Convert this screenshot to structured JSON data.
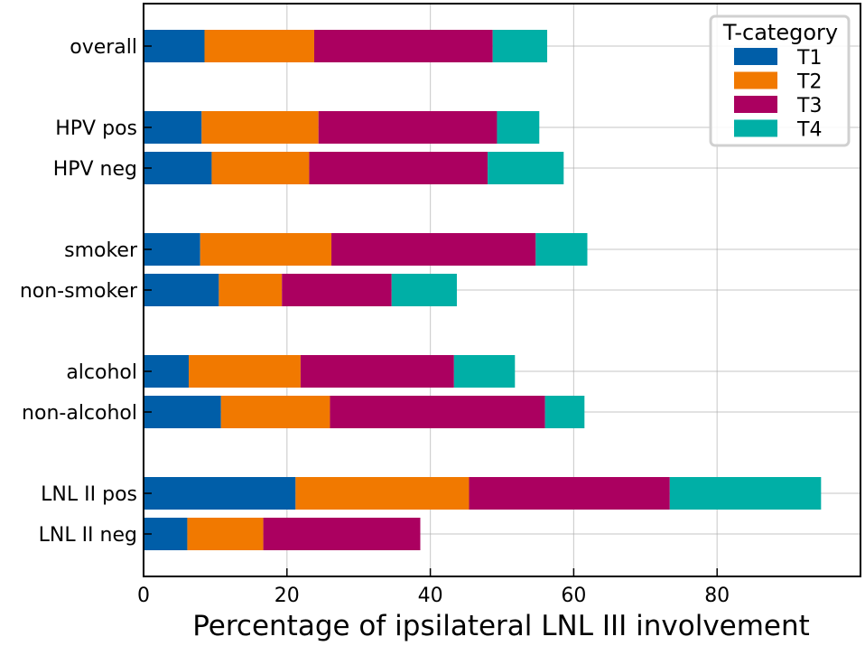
{
  "chart_data": {
    "type": "bar",
    "orientation": "horizontal",
    "stacked": true,
    "xlabel": "Percentage of ipsilateral LNL III involvement",
    "ylabel": "",
    "xlim": [
      0,
      100
    ],
    "xticks": [
      0,
      20,
      40,
      60,
      80
    ],
    "grid": true,
    "legend": {
      "title": "T-category",
      "placement": "top-right"
    },
    "categories": [
      "overall",
      "HPV pos",
      "HPV neg",
      "smoker",
      "non-smoker",
      "alcohol",
      "non-alcohol",
      "LNL II pos",
      "LNL II neg"
    ],
    "groups": [
      [
        "overall"
      ],
      [
        "HPV pos",
        "HPV neg"
      ],
      [
        "smoker",
        "non-smoker"
      ],
      [
        "alcohol",
        "non-alcohol"
      ],
      [
        "LNL II pos",
        "LNL II neg"
      ]
    ],
    "series": [
      {
        "name": "T1",
        "color": "#005ea8",
        "values": [
          8.5,
          8.1,
          9.5,
          7.9,
          10.5,
          6.3,
          10.8,
          21.2,
          6.1
        ]
      },
      {
        "name": "T2",
        "color": "#f17900",
        "values": [
          15.3,
          16.3,
          13.6,
          18.3,
          8.8,
          15.6,
          15.2,
          24.2,
          10.6
        ]
      },
      {
        "name": "T3",
        "color": "#ab0060",
        "values": [
          24.9,
          24.9,
          24.9,
          28.5,
          15.3,
          21.4,
          30.0,
          28.0,
          21.9
        ]
      },
      {
        "name": "T4",
        "color": "#00afa6",
        "values": [
          7.6,
          5.9,
          10.6,
          7.2,
          9.1,
          8.5,
          5.5,
          21.1,
          0
        ]
      }
    ]
  }
}
